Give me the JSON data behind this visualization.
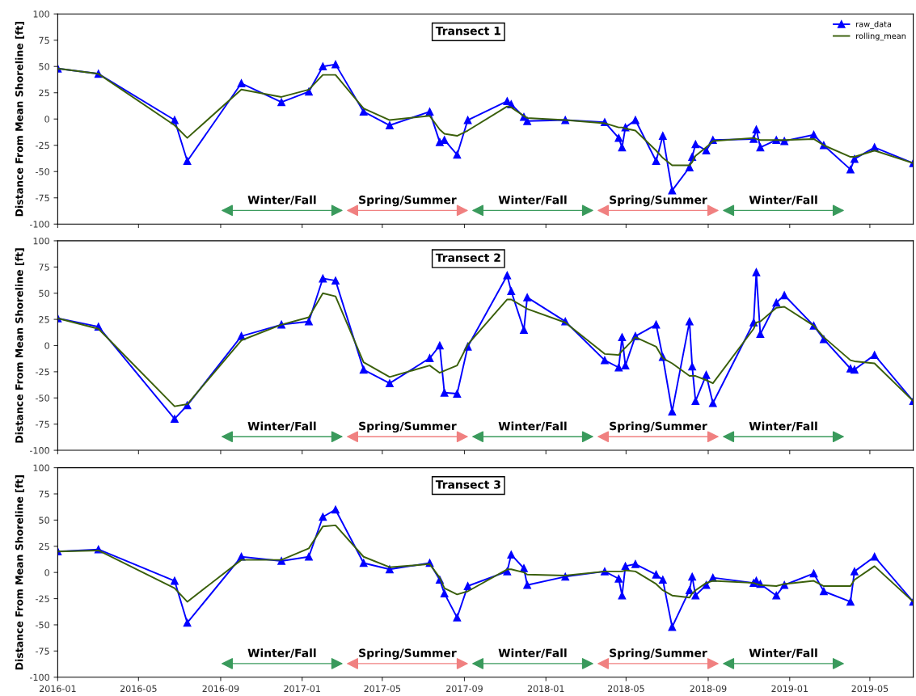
{
  "chart_data": [
    {
      "type": "line",
      "title": "Transect 1",
      "ylabel": "Distance From Mean Shoreline [ft]",
      "legend": "top right",
      "tick_labels": "y",
      "x": [
        "2016-01-01",
        "2016-03-02",
        "2016-06-24",
        "2016-07-13",
        "2016-10-02",
        "2016-12-01",
        "2017-01-11",
        "2017-02-01",
        "2017-02-20",
        "2017-04-03",
        "2017-05-12",
        "2017-07-11",
        "2017-07-26",
        "2017-08-02",
        "2017-08-21",
        "2017-09-06",
        "2017-11-04",
        "2017-11-10",
        "2017-11-29",
        "2017-12-04",
        "2018-01-30",
        "2018-03-30",
        "2018-04-20",
        "2018-04-25",
        "2018-04-30",
        "2018-05-15",
        "2018-06-15",
        "2018-06-25",
        "2018-07-09",
        "2018-08-04",
        "2018-08-08",
        "2018-08-13",
        "2018-08-29",
        "2018-09-08",
        "2018-11-08",
        "2018-11-12",
        "2018-11-18",
        "2018-12-12",
        "2018-12-24",
        "2019-02-06",
        "2019-02-21",
        "2019-04-02",
        "2019-04-08",
        "2019-05-08",
        "2019-07-05"
      ],
      "series": [
        {
          "name": "raw_data",
          "color": "#0000ff",
          "marker": "triangle",
          "values": [
            48,
            43,
            -1,
            -40,
            34,
            16,
            26,
            50,
            52,
            7,
            -6,
            7,
            -22,
            -20,
            -34,
            -1,
            17,
            14,
            2,
            -2,
            -1,
            -3,
            -18,
            -27,
            -8,
            -1,
            -40,
            -16,
            -68,
            -46,
            -36,
            -24,
            -30,
            -20,
            -19,
            -10,
            -27,
            -20,
            -21,
            -15,
            -25,
            -48,
            -38,
            -27,
            -42
          ]
        },
        {
          "name": "rolling_mean",
          "color": "#3a5f0b",
          "values": [
            48,
            43,
            -6,
            -18,
            28,
            21,
            28,
            42,
            42,
            10,
            -1,
            3,
            -10,
            -14,
            -16,
            -11,
            12,
            11,
            3,
            1,
            -1,
            -4,
            -8,
            -8,
            -9,
            -11,
            -30,
            -37,
            -44,
            -44,
            -41,
            -35,
            -27,
            -21,
            -18,
            -19,
            -20,
            -20,
            -20,
            -19,
            -25,
            -36,
            -36,
            -30,
            -42
          ]
        }
      ],
      "xlim": [
        "2016-01-01",
        "2019-07-05"
      ],
      "xticks": [
        "2016-01",
        "2016-05",
        "2016-09",
        "2017-01",
        "2017-05",
        "2017-09",
        "2018-01",
        "2018-05",
        "2018-09",
        "2019-01",
        "2019-05"
      ],
      "ylim": [
        -100,
        100
      ],
      "yticks": [
        -100,
        -75,
        -50,
        -25,
        0,
        25,
        50,
        75,
        100
      ],
      "annotations": [
        "Winter/Fall",
        "Spring/Summer",
        "Winter/Fall",
        "Spring/Summer",
        "Winter/Fall"
      ]
    },
    {
      "type": "line",
      "title": "Transect 2",
      "ylabel": "Distance From Mean Shoreline [ft]",
      "tick_labels": "y",
      "x": [
        "2016-01-01",
        "2016-03-02",
        "2016-06-24",
        "2016-07-13",
        "2016-10-02",
        "2016-12-01",
        "2017-01-11",
        "2017-02-01",
        "2017-02-20",
        "2017-04-03",
        "2017-05-12",
        "2017-07-11",
        "2017-07-26",
        "2017-08-02",
        "2017-08-21",
        "2017-09-06",
        "2017-11-04",
        "2017-11-10",
        "2017-11-29",
        "2017-12-04",
        "2018-01-30",
        "2018-03-30",
        "2018-04-20",
        "2018-04-25",
        "2018-04-30",
        "2018-05-15",
        "2018-06-15",
        "2018-06-25",
        "2018-07-09",
        "2018-08-04",
        "2018-08-08",
        "2018-08-13",
        "2018-08-29",
        "2018-09-08",
        "2018-11-08",
        "2018-11-12",
        "2018-11-18",
        "2018-12-12",
        "2018-12-24",
        "2019-02-06",
        "2019-02-21",
        "2019-04-02",
        "2019-04-08",
        "2019-05-08",
        "2019-07-05"
      ],
      "series": [
        {
          "color": "#0000ff",
          "marker": "triangle",
          "values": [
            26,
            18,
            -70,
            -57,
            9,
            20,
            23,
            64,
            62,
            -23,
            -36,
            -12,
            0,
            -45,
            -46,
            -1,
            67,
            52,
            15,
            46,
            23,
            -14,
            -21,
            8,
            -19,
            9,
            20,
            -11,
            -63,
            23,
            -20,
            -53,
            -28,
            -55,
            22,
            70,
            11,
            41,
            48,
            19,
            6,
            -22,
            -23,
            -9,
            -53
          ]
        },
        {
          "color": "#3a5f0b",
          "values": [
            26,
            16,
            -58,
            -56,
            5,
            20,
            27,
            50,
            47,
            -16,
            -30,
            -19,
            -26,
            -24,
            -19,
            1,
            44,
            44,
            37,
            35,
            22,
            -8,
            -9,
            -5,
            -2,
            8,
            -1,
            -12,
            -17,
            -29,
            -29,
            -29,
            -33,
            -36,
            16,
            22,
            23,
            36,
            37,
            19,
            8,
            -14,
            -15,
            -17,
            -53
          ]
        }
      ],
      "xlim": [
        "2016-01-01",
        "2019-07-05"
      ],
      "xticks": [
        "2016-01",
        "2016-05",
        "2016-09",
        "2017-01",
        "2017-05",
        "2017-09",
        "2018-01",
        "2018-05",
        "2018-09",
        "2019-01",
        "2019-05"
      ],
      "ylim": [
        -100,
        100
      ],
      "yticks": [
        -100,
        -75,
        -50,
        -25,
        0,
        25,
        50,
        75,
        100
      ],
      "annotations": [
        "Winter/Fall",
        "Spring/Summer",
        "Winter/Fall",
        "Spring/Summer",
        "Winter/Fall"
      ]
    },
    {
      "type": "line",
      "title": "Transect 3",
      "ylabel": "Distance From Mean Shoreline [ft]",
      "x": [
        "2016-01-01",
        "2016-03-02",
        "2016-06-24",
        "2016-07-13",
        "2016-10-02",
        "2016-12-01",
        "2017-01-11",
        "2017-02-01",
        "2017-02-20",
        "2017-04-03",
        "2017-05-12",
        "2017-07-11",
        "2017-07-26",
        "2017-08-02",
        "2017-08-21",
        "2017-09-06",
        "2017-11-04",
        "2017-11-10",
        "2017-11-29",
        "2017-12-04",
        "2018-01-30",
        "2018-03-30",
        "2018-04-20",
        "2018-04-25",
        "2018-04-30",
        "2018-05-15",
        "2018-06-15",
        "2018-06-25",
        "2018-07-09",
        "2018-08-04",
        "2018-08-08",
        "2018-08-13",
        "2018-08-29",
        "2018-09-08",
        "2018-11-08",
        "2018-11-12",
        "2018-11-18",
        "2018-12-12",
        "2018-12-24",
        "2019-02-06",
        "2019-02-21",
        "2019-04-02",
        "2019-04-08",
        "2019-05-08",
        "2019-07-05"
      ],
      "series": [
        {
          "color": "#0000ff",
          "marker": "triangle",
          "values": [
            20,
            22,
            -8,
            -48,
            15,
            11,
            15,
            53,
            60,
            9,
            3,
            9,
            -7,
            -20,
            -43,
            -13,
            1,
            17,
            4,
            -12,
            -4,
            1,
            -6,
            -22,
            6,
            8,
            -2,
            -7,
            -52,
            -17,
            -4,
            -22,
            -12,
            -5,
            -10,
            -8,
            -11,
            -22,
            -12,
            -1,
            -18,
            -28,
            1,
            15,
            -28
          ]
        },
        {
          "color": "#3a5f0b",
          "values": [
            20,
            21,
            -15,
            -28,
            12,
            12,
            23,
            44,
            45,
            15,
            5,
            8,
            -5,
            -15,
            -21,
            -18,
            3,
            3,
            0,
            -2,
            -3,
            1,
            1,
            1,
            2,
            1,
            -11,
            -17,
            -22,
            -24,
            -20,
            -17,
            -10,
            -8,
            -10,
            -11,
            -12,
            -13,
            -11,
            -8,
            -13,
            -13,
            -7,
            6,
            -28
          ]
        }
      ],
      "xlim": [
        "2016-01-01",
        "2019-07-05"
      ],
      "xticks": [
        "2016-01",
        "2016-05",
        "2016-09",
        "2017-01",
        "2017-05",
        "2017-09",
        "2018-01",
        "2018-05",
        "2018-09",
        "2019-01",
        "2019-05"
      ],
      "ylim": [
        -100,
        100
      ],
      "yticks": [
        -100,
        -75,
        -50,
        -25,
        0,
        25,
        50,
        75,
        100
      ],
      "annotations": [
        "Winter/Fall",
        "Spring/Summer",
        "Winter/Fall",
        "Spring/Summer",
        "Winter/Fall"
      ]
    }
  ]
}
